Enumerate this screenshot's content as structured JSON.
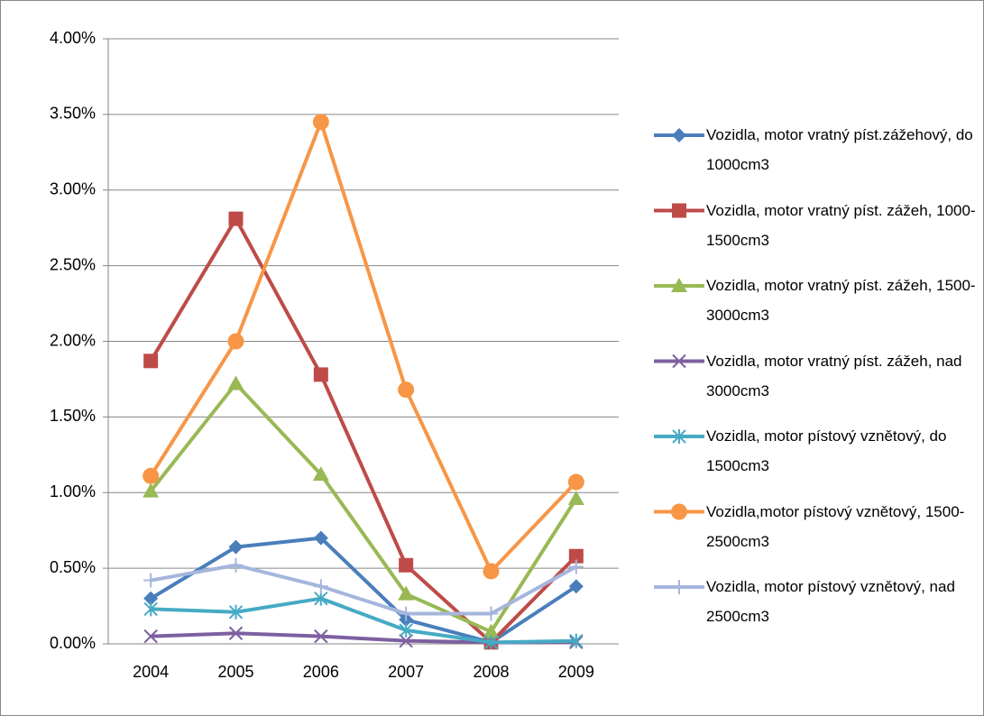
{
  "chart_data": {
    "type": "line",
    "categories": [
      "2004",
      "2005",
      "2006",
      "2007",
      "2008",
      "2009"
    ],
    "ylim": [
      0,
      4
    ],
    "yticks": [
      {
        "value": 0,
        "label": "0.00%"
      },
      {
        "value": 0.5,
        "label": "0.50%"
      },
      {
        "value": 1,
        "label": "1.00%"
      },
      {
        "value": 1.5,
        "label": "1.50%"
      },
      {
        "value": 2,
        "label": "2.00%"
      },
      {
        "value": 2.5,
        "label": "2.50%"
      },
      {
        "value": 3,
        "label": "3.00%"
      },
      {
        "value": 3.5,
        "label": "3.50%"
      },
      {
        "value": 4,
        "label": "4.00%"
      }
    ],
    "grid": true,
    "legend": "right",
    "series": [
      {
        "name": "Vozidla, motor vratný píst.zážehový, do 1000cm3",
        "color": "#4a7ebb",
        "marker": "diamond",
        "values": [
          0.3,
          0.64,
          0.7,
          0.16,
          0.01,
          0.38
        ]
      },
      {
        "name": "Vozidla, motor vratný píst. zážeh, 1000-1500cm3",
        "color": "#be4b48",
        "marker": "square",
        "values": [
          1.87,
          2.81,
          1.78,
          0.52,
          0.01,
          0.58
        ]
      },
      {
        "name": "Vozidla, motor vratný píst. zážeh, 1500-3000cm3",
        "color": "#98b954",
        "marker": "triangle",
        "values": [
          1.01,
          1.72,
          1.12,
          0.33,
          0.08,
          0.96
        ]
      },
      {
        "name": "Vozidla, motor vratný píst. zážeh, nad 3000cm3",
        "color": "#7d60a0",
        "marker": "x",
        "values": [
          0.05,
          0.07,
          0.05,
          0.02,
          0.01,
          0.01
        ]
      },
      {
        "name": "Vozidla, motor pístový vznětový, do 1500cm3",
        "color": "#46aac5",
        "marker": "star",
        "values": [
          0.23,
          0.21,
          0.3,
          0.09,
          0.01,
          0.02
        ]
      },
      {
        "name": "Vozidla,motor pístový vznětový, 1500-2500cm3",
        "color": "#f79646",
        "marker": "circle",
        "values": [
          1.11,
          2.0,
          3.45,
          1.68,
          0.48,
          1.07
        ]
      },
      {
        "name": "Vozidla, motor pístový vznětový, nad 2500cm3",
        "color": "#a5b6dd",
        "marker": "plus",
        "values": [
          0.42,
          0.52,
          0.38,
          0.2,
          0.2,
          0.51
        ]
      }
    ]
  }
}
